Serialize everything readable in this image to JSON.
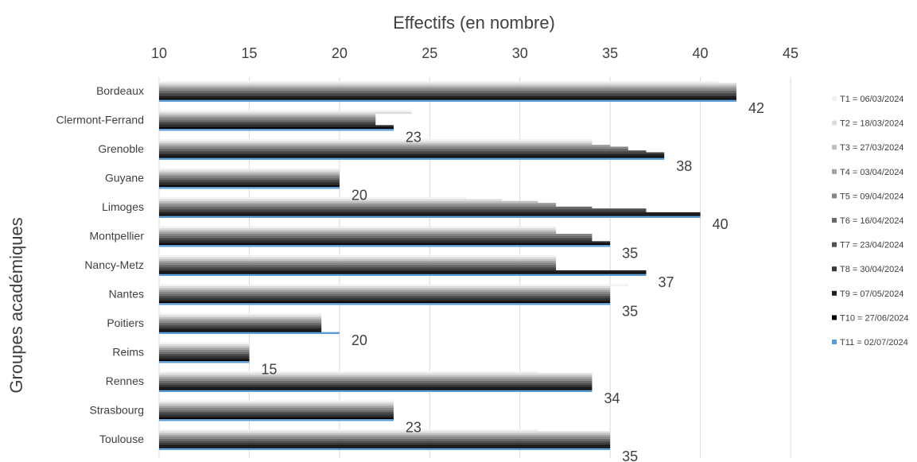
{
  "chart_data": {
    "type": "bar",
    "orientation": "horizontal",
    "title": "",
    "xlabel": "Effectifs (en nombre)",
    "ylabel": "Groupes académiques",
    "xlim": [
      10,
      45
    ],
    "xticks": [
      10,
      15,
      20,
      25,
      30,
      35,
      40,
      45
    ],
    "grid": "vertical",
    "legend_position": "right",
    "categories": [
      "Bordeaux",
      "Clermont-Ferrand",
      "Grenoble",
      "Guyane",
      "Limoges",
      "Montpellier",
      "Nancy-Metz",
      "Nantes",
      "Poitiers",
      "Reims",
      "Rennes",
      "Strasbourg",
      "Toulouse"
    ],
    "series": [
      {
        "name": "T1 = 06/03/2024",
        "color": "#f2f2f2",
        "values": [
          41,
          24,
          34,
          20,
          27,
          32,
          32,
          36,
          19,
          15,
          31,
          23,
          31
        ]
      },
      {
        "name": "T2 = 18/03/2024",
        "color": "#dcdcdc",
        "values": [
          42,
          24,
          34,
          20,
          29,
          32,
          32,
          35,
          19,
          15,
          34,
          23,
          35
        ]
      },
      {
        "name": "T3 = 27/03/2024",
        "color": "#c0c0c0",
        "values": [
          42,
          22,
          34,
          20,
          31,
          32,
          32,
          35,
          19,
          15,
          34,
          23,
          35
        ]
      },
      {
        "name": "T4 = 03/04/2024",
        "color": "#a0a0a0",
        "values": [
          42,
          22,
          35,
          20,
          32,
          32,
          32,
          35,
          19,
          15,
          34,
          23,
          35
        ]
      },
      {
        "name": "T5 = 09/04/2024",
        "color": "#858585",
        "values": [
          42,
          22,
          36,
          20,
          32,
          34,
          32,
          35,
          19,
          15,
          34,
          23,
          35
        ]
      },
      {
        "name": "T6 = 16/04/2024",
        "color": "#6a6a6a",
        "values": [
          42,
          22,
          36,
          20,
          34,
          34,
          32,
          35,
          19,
          15,
          34,
          23,
          35
        ]
      },
      {
        "name": "T7 = 23/04/2024",
        "color": "#505050",
        "values": [
          42,
          22,
          37,
          20,
          37,
          34,
          32,
          35,
          19,
          15,
          34,
          23,
          35
        ]
      },
      {
        "name": "T8 = 30/04/2024",
        "color": "#383838",
        "values": [
          42,
          22,
          38,
          20,
          37,
          34,
          32,
          35,
          19,
          15,
          34,
          23,
          35
        ]
      },
      {
        "name": "T9 = 07/05/2024",
        "color": "#1f1f1f",
        "values": [
          42,
          23,
          38,
          20,
          40,
          35,
          37,
          35,
          19,
          15,
          34,
          23,
          35
        ]
      },
      {
        "name": "T10 = 27/06/2024",
        "color": "#000000",
        "values": [
          42,
          23,
          38,
          20,
          40,
          35,
          37,
          35,
          19,
          15,
          34,
          23,
          35
        ]
      },
      {
        "name": "T11 = 02/07/2024",
        "color": "#5b9bd5",
        "values": [
          42,
          23,
          38,
          20,
          40,
          35,
          37,
          35,
          20,
          15,
          34,
          23,
          35
        ]
      }
    ],
    "data_labels": [
      42,
      23,
      38,
      20,
      40,
      35,
      37,
      35,
      20,
      15,
      34,
      23,
      35
    ]
  }
}
